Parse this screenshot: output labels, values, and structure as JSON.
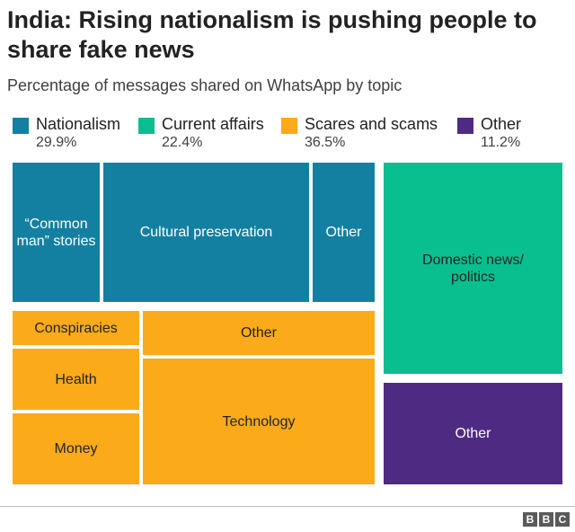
{
  "title": "India: Rising nationalism is pushing people to share fake news",
  "subtitle": "Percentage of messages shared on WhatsApp by topic",
  "colors": {
    "nationalism": "#1380a1",
    "current_affairs": "#0abf8f",
    "scares_scams": "#fbaa19",
    "other": "#4f2a82"
  },
  "legend": [
    {
      "name": "Nationalism",
      "value": "29.9%"
    },
    {
      "name": "Current affairs",
      "value": "22.4%"
    },
    {
      "name": "Scares and scams",
      "value": "36.5%"
    },
    {
      "name": "Other",
      "value": "11.2%"
    }
  ],
  "chart_data": {
    "type": "treemap",
    "groups": [
      {
        "name": "Nationalism",
        "share": 29.9,
        "color": "#1380a1",
        "items": [
          "“Common man” stories",
          "Cultural preservation",
          "Other"
        ]
      },
      {
        "name": "Current affairs",
        "share": 22.4,
        "color": "#0abf8f",
        "items": [
          "Domestic news/ politics"
        ]
      },
      {
        "name": "Scares and scams",
        "share": 36.5,
        "color": "#fbaa19",
        "items": [
          "Conspiracies",
          "Other",
          "Health",
          "Money",
          "Technology"
        ]
      },
      {
        "name": "Other",
        "share": 11.2,
        "color": "#4f2a82",
        "items": [
          "Other"
        ]
      }
    ]
  },
  "footer": {
    "logo": [
      "B",
      "B",
      "C"
    ]
  }
}
